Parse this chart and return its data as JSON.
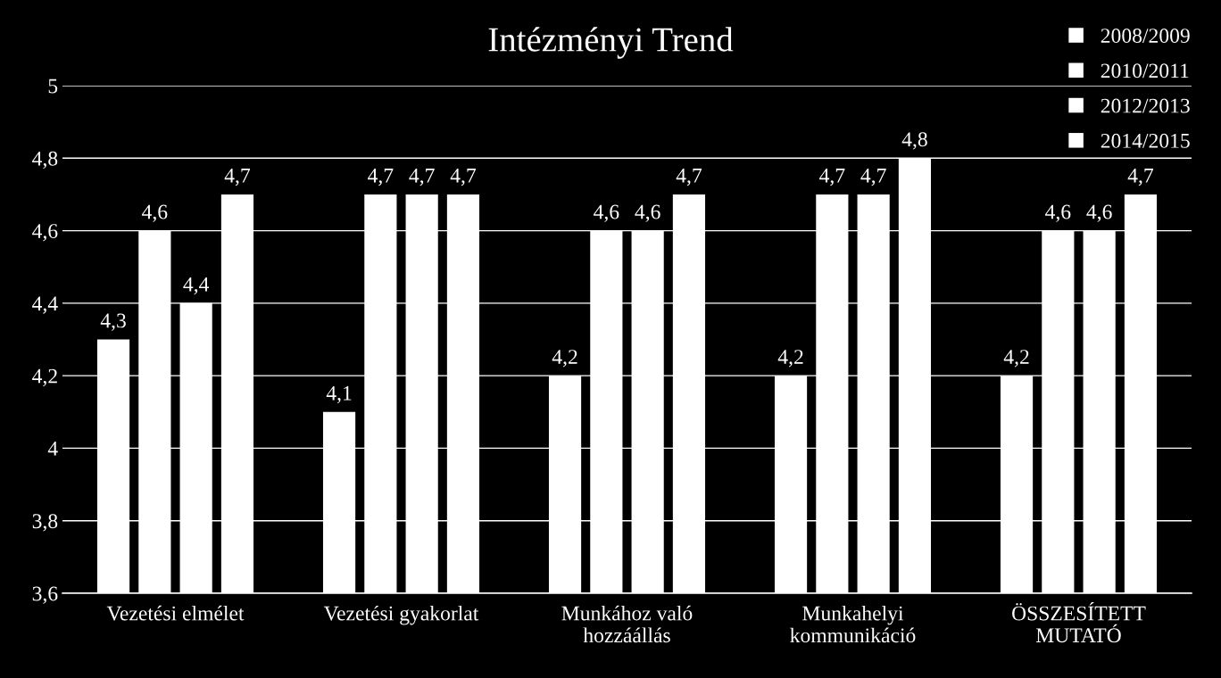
{
  "chart_data": {
    "type": "bar",
    "title": "Intézményi Trend",
    "categories": [
      "Vezetési elmélet",
      "Vezetési gyakorlat",
      "Munkához való\nhozzáállás",
      "Munkahelyi\nkommunikáció",
      "ÖSSZESÍTETT\nMUTATÓ"
    ],
    "series": [
      {
        "name": "2008/2009",
        "color": "#ffffff",
        "values": [
          4.3,
          4.1,
          4.2,
          4.2,
          4.2
        ],
        "value_labels": [
          "4,3",
          "4,1",
          "4,2",
          "4,2",
          "4,2"
        ]
      },
      {
        "name": "2010/2011",
        "color": "#ffffff",
        "values": [
          4.6,
          4.7,
          4.6,
          4.7,
          4.6
        ],
        "value_labels": [
          "4,6",
          "4,7",
          "4,6",
          "4,7",
          "4,6"
        ]
      },
      {
        "name": "2012/2013",
        "color": "#ffffff",
        "values": [
          4.4,
          4.7,
          4.6,
          4.7,
          4.6
        ],
        "value_labels": [
          "4,4",
          "4,7",
          "4,6",
          "4,7",
          "4,6"
        ]
      },
      {
        "name": "2014/2015",
        "color": "#ffffff",
        "values": [
          4.7,
          4.7,
          4.7,
          4.8,
          4.7
        ],
        "value_labels": [
          "4,7",
          "4,7",
          "4,7",
          "4,8",
          "4,7"
        ]
      }
    ],
    "ylim": [
      3.6,
      5
    ],
    "yticks": [
      {
        "value": 3.6,
        "label": "3,6"
      },
      {
        "value": 3.8,
        "label": "3,8"
      },
      4,
      {
        "value": 4.2,
        "label": "4,2"
      },
      {
        "value": 4.4,
        "label": "4,4"
      },
      {
        "value": 4.6,
        "label": "4,6"
      },
      {
        "value": 4.8,
        "label": "4,8"
      },
      5
    ],
    "grid": "y",
    "legend": "top right"
  }
}
